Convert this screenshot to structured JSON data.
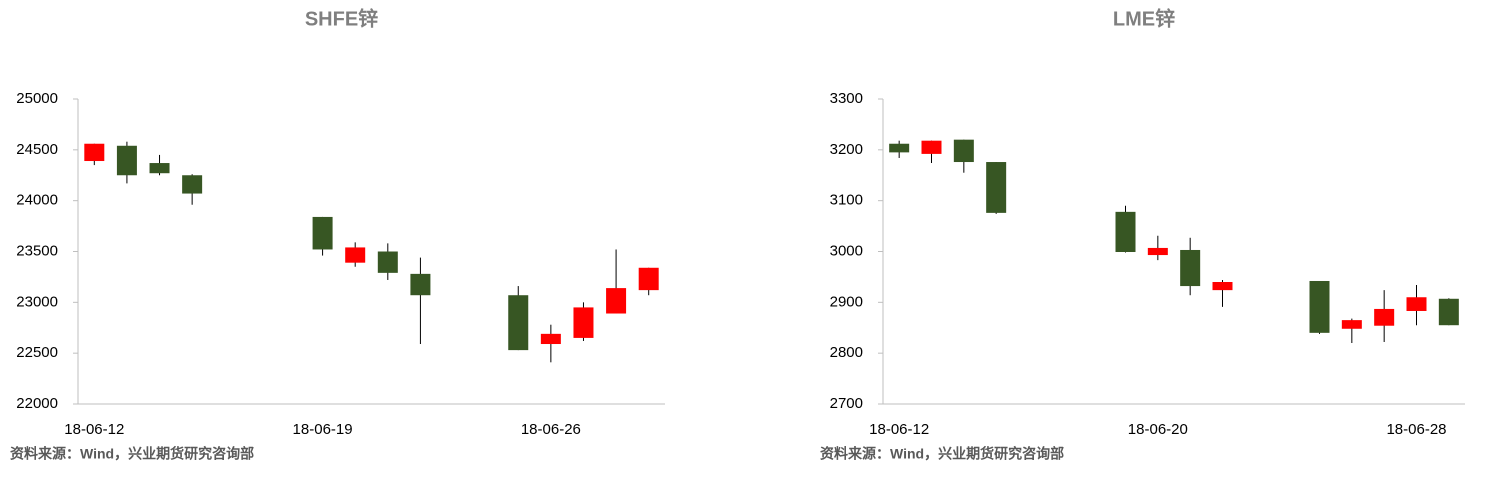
{
  "chart_data": [
    {
      "type": "candlestick",
      "title": "SHFE锌",
      "source": "资料来源：Wind，兴业期货研究咨询部",
      "up_color": "#ff0000",
      "down_color": "#375623",
      "categories": [
        "18-06-12",
        null,
        null,
        null,
        null,
        null,
        null,
        "18-06-19",
        null,
        null,
        null,
        null,
        null,
        null,
        "18-06-26",
        null,
        null,
        null
      ],
      "open": [
        24390,
        24540,
        24370,
        24250,
        null,
        null,
        null,
        23840,
        23390,
        23500,
        23280,
        null,
        null,
        23070,
        22590,
        22650,
        22890,
        23120
      ],
      "high": [
        24560,
        24580,
        24450,
        24260,
        null,
        null,
        null,
        23840,
        23590,
        23580,
        23440,
        null,
        null,
        23160,
        22780,
        23000,
        23520,
        23340
      ],
      "low": [
        24350,
        24170,
        24250,
        23960,
        null,
        null,
        null,
        23460,
        23350,
        23220,
        22590,
        null,
        null,
        22530,
        22410,
        22620,
        22890,
        23070
      ],
      "close": [
        24560,
        24250,
        24270,
        24070,
        null,
        null,
        null,
        23520,
        23540,
        23290,
        23070,
        null,
        null,
        22530,
        22690,
        22950,
        23140,
        23340
      ],
      "ylim": [
        22000,
        25000
      ],
      "yticks": [
        22000,
        22500,
        23000,
        23500,
        24000,
        24500,
        25000
      ]
    },
    {
      "type": "candlestick",
      "title": "LME锌",
      "source": "资料来源：Wind，兴业期货研究咨询部",
      "up_color": "#ff0000",
      "down_color": "#375623",
      "categories": [
        "18-06-12",
        null,
        null,
        null,
        null,
        null,
        null,
        null,
        "18-06-20",
        null,
        null,
        null,
        null,
        null,
        null,
        null,
        "18-06-28",
        null
      ],
      "open": [
        3212,
        3192,
        3220,
        3176,
        null,
        null,
        null,
        3078,
        2993,
        3003,
        2924,
        null,
        null,
        2942,
        2848,
        2854,
        2883,
        2907
      ],
      "high": [
        3218,
        3218,
        3220,
        3176,
        null,
        null,
        null,
        3090,
        3031,
        3027,
        2944,
        null,
        null,
        2942,
        2868,
        2924,
        2934,
        2908
      ],
      "low": [
        3184,
        3174,
        3155,
        3074,
        null,
        null,
        null,
        2998,
        2983,
        2914,
        2891,
        null,
        null,
        2838,
        2820,
        2822,
        2855,
        2855
      ],
      "close": [
        3195,
        3218,
        3176,
        3076,
        null,
        null,
        null,
        2999,
        3007,
        2932,
        2940,
        null,
        null,
        2840,
        2865,
        2887,
        2910,
        2855
      ],
      "ylim": [
        2700,
        3300
      ],
      "yticks": [
        2700,
        2800,
        2900,
        3000,
        3100,
        3200,
        3300
      ]
    }
  ]
}
